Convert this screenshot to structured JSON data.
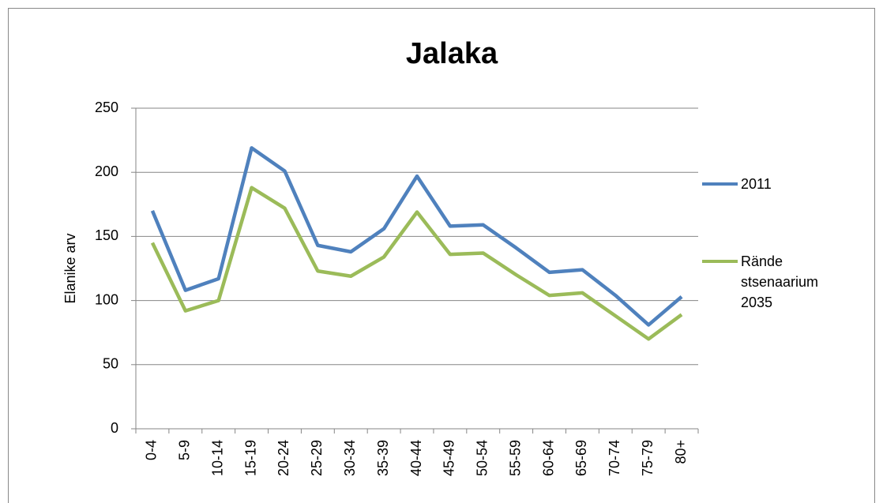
{
  "chart_data": {
    "type": "line",
    "title": "Jalaka",
    "y_label": "Elanike arv",
    "categories": [
      "0-4",
      "5-9",
      "10-14",
      "15-19",
      "20-24",
      "25-29",
      "30-34",
      "35-39",
      "40-44",
      "45-49",
      "50-54",
      "55-59",
      "60-64",
      "65-69",
      "70-74",
      "75-79",
      "80+"
    ],
    "series": [
      {
        "name": "2011",
        "color": "#4f81bd",
        "values": [
          170,
          108,
          117,
          219,
          201,
          143,
          138,
          156,
          197,
          158,
          159,
          141,
          122,
          124,
          104,
          81,
          103
        ]
      },
      {
        "name": "Rände stsenaarium 2035",
        "color": "#9bbb59",
        "values": [
          145,
          92,
          100,
          188,
          172,
          123,
          119,
          134,
          169,
          136,
          137,
          120,
          104,
          106,
          88,
          70,
          89
        ]
      }
    ],
    "ylim": [
      0,
      250
    ],
    "yticks": [
      0,
      50,
      100,
      150,
      200,
      250
    ],
    "grid": true,
    "legend": "right"
  }
}
